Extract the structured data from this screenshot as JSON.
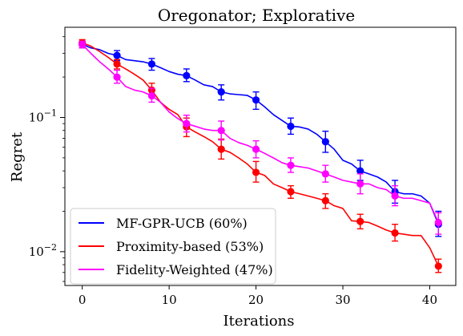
{
  "chart_data": {
    "type": "line",
    "title": "Oregonator; Explorative",
    "xlabel": "Iterations",
    "ylabel": "Regret",
    "xlim": [
      -2,
      43
    ],
    "ylim": [
      0.0056,
      0.47
    ],
    "yscale": "log",
    "x_ticks": [
      0,
      10,
      20,
      30,
      40
    ],
    "x_tick_labels": [
      "0",
      "10",
      "20",
      "30",
      "40"
    ],
    "y_ticks": [
      0.01,
      0.1
    ],
    "y_tick_label_base": "10",
    "y_tick_label_exps": [
      "−2",
      "−1"
    ],
    "grid": false,
    "legend_position": "bottom-left",
    "series": [
      {
        "name": "MF-GPR-UCB (60%)",
        "color": "#0000ff",
        "x": [
          0,
          1,
          2,
          3,
          4,
          5,
          6,
          7,
          8,
          9,
          10,
          11,
          12,
          13,
          14,
          15,
          16,
          17,
          18,
          19,
          20,
          21,
          22,
          23,
          24,
          25,
          26,
          27,
          28,
          29,
          30,
          31,
          32,
          33,
          34,
          35,
          36,
          37,
          38,
          39,
          40,
          41
        ],
        "y": [
          0.35,
          0.33,
          0.32,
          0.3,
          0.29,
          0.27,
          0.265,
          0.26,
          0.25,
          0.235,
          0.22,
          0.21,
          0.205,
          0.19,
          0.175,
          0.17,
          0.155,
          0.15,
          0.148,
          0.146,
          0.135,
          0.12,
          0.105,
          0.095,
          0.086,
          0.085,
          0.082,
          0.075,
          0.066,
          0.058,
          0.048,
          0.045,
          0.04,
          0.038,
          0.036,
          0.033,
          0.028,
          0.027,
          0.027,
          0.026,
          0.023,
          0.016
        ],
        "markers": [
          {
            "x": 0,
            "y": 0.35,
            "lo": 0.33,
            "hi": 0.37
          },
          {
            "x": 4,
            "y": 0.29,
            "lo": 0.265,
            "hi": 0.315
          },
          {
            "x": 8,
            "y": 0.25,
            "lo": 0.225,
            "hi": 0.275
          },
          {
            "x": 12,
            "y": 0.205,
            "lo": 0.185,
            "hi": 0.23
          },
          {
            "x": 16,
            "y": 0.155,
            "lo": 0.135,
            "hi": 0.175
          },
          {
            "x": 20,
            "y": 0.135,
            "lo": 0.115,
            "hi": 0.155
          },
          {
            "x": 24,
            "y": 0.086,
            "lo": 0.075,
            "hi": 0.099
          },
          {
            "x": 28,
            "y": 0.066,
            "lo": 0.055,
            "hi": 0.079
          },
          {
            "x": 32,
            "y": 0.04,
            "lo": 0.034,
            "hi": 0.048
          },
          {
            "x": 36,
            "y": 0.028,
            "lo": 0.023,
            "hi": 0.034
          },
          {
            "x": 41,
            "y": 0.016,
            "lo": 0.013,
            "hi": 0.02
          }
        ]
      },
      {
        "name": "Proximity-based (53%)",
        "color": "#ff0000",
        "x": [
          0,
          1,
          2,
          3,
          4,
          5,
          6,
          7,
          8,
          9,
          10,
          11,
          12,
          13,
          14,
          15,
          16,
          17,
          18,
          19,
          20,
          21,
          22,
          23,
          24,
          25,
          26,
          27,
          28,
          29,
          30,
          31,
          32,
          33,
          34,
          35,
          36,
          37,
          38,
          39,
          40,
          41
        ],
        "y": [
          0.36,
          0.34,
          0.31,
          0.28,
          0.25,
          0.23,
          0.21,
          0.19,
          0.16,
          0.13,
          0.115,
          0.105,
          0.085,
          0.078,
          0.072,
          0.066,
          0.058,
          0.055,
          0.05,
          0.045,
          0.039,
          0.037,
          0.032,
          0.03,
          0.028,
          0.027,
          0.026,
          0.025,
          0.024,
          0.022,
          0.021,
          0.017,
          0.0168,
          0.0165,
          0.0155,
          0.0145,
          0.0138,
          0.0135,
          0.0132,
          0.0132,
          0.0107,
          0.0078
        ],
        "markers": [
          {
            "x": 0,
            "y": 0.36,
            "lo": 0.34,
            "hi": 0.38
          },
          {
            "x": 4,
            "y": 0.25,
            "lo": 0.23,
            "hi": 0.27
          },
          {
            "x": 8,
            "y": 0.16,
            "lo": 0.145,
            "hi": 0.18
          },
          {
            "x": 12,
            "y": 0.085,
            "lo": 0.072,
            "hi": 0.099
          },
          {
            "x": 16,
            "y": 0.058,
            "lo": 0.049,
            "hi": 0.069
          },
          {
            "x": 20,
            "y": 0.039,
            "lo": 0.033,
            "hi": 0.047
          },
          {
            "x": 24,
            "y": 0.028,
            "lo": 0.025,
            "hi": 0.031
          },
          {
            "x": 28,
            "y": 0.024,
            "lo": 0.021,
            "hi": 0.027
          },
          {
            "x": 32,
            "y": 0.0168,
            "lo": 0.0148,
            "hi": 0.019
          },
          {
            "x": 36,
            "y": 0.0138,
            "lo": 0.012,
            "hi": 0.016
          },
          {
            "x": 41,
            "y": 0.0078,
            "lo": 0.007,
            "hi": 0.0088
          }
        ]
      },
      {
        "name": "Fidelity-Weighted (47%)",
        "color": "#ff00ff",
        "x": [
          0,
          1,
          2,
          3,
          4,
          5,
          6,
          7,
          8,
          9,
          10,
          11,
          12,
          13,
          14,
          15,
          16,
          17,
          18,
          19,
          20,
          21,
          22,
          23,
          24,
          25,
          26,
          27,
          28,
          29,
          30,
          31,
          32,
          33,
          34,
          35,
          36,
          37,
          38,
          39,
          40,
          41
        ],
        "y": [
          0.35,
          0.3,
          0.26,
          0.23,
          0.2,
          0.17,
          0.16,
          0.155,
          0.145,
          0.13,
          0.11,
          0.098,
          0.09,
          0.086,
          0.082,
          0.08,
          0.08,
          0.07,
          0.065,
          0.062,
          0.058,
          0.054,
          0.05,
          0.046,
          0.044,
          0.043,
          0.042,
          0.04,
          0.038,
          0.036,
          0.034,
          0.033,
          0.032,
          0.032,
          0.03,
          0.029,
          0.026,
          0.025,
          0.025,
          0.024,
          0.023,
          0.0165
        ],
        "markers": [
          {
            "x": 0,
            "y": 0.35,
            "lo": 0.33,
            "hi": 0.37
          },
          {
            "x": 4,
            "y": 0.2,
            "lo": 0.18,
            "hi": 0.225
          },
          {
            "x": 8,
            "y": 0.145,
            "lo": 0.13,
            "hi": 0.165
          },
          {
            "x": 12,
            "y": 0.09,
            "lo": 0.078,
            "hi": 0.104
          },
          {
            "x": 16,
            "y": 0.08,
            "lo": 0.068,
            "hi": 0.094
          },
          {
            "x": 20,
            "y": 0.058,
            "lo": 0.05,
            "hi": 0.067
          },
          {
            "x": 24,
            "y": 0.044,
            "lo": 0.039,
            "hi": 0.05
          },
          {
            "x": 28,
            "y": 0.038,
            "lo": 0.033,
            "hi": 0.044
          },
          {
            "x": 32,
            "y": 0.032,
            "lo": 0.027,
            "hi": 0.038
          },
          {
            "x": 36,
            "y": 0.026,
            "lo": 0.022,
            "hi": 0.031
          },
          {
            "x": 41,
            "y": 0.0165,
            "lo": 0.0135,
            "hi": 0.0195
          }
        ]
      }
    ]
  }
}
